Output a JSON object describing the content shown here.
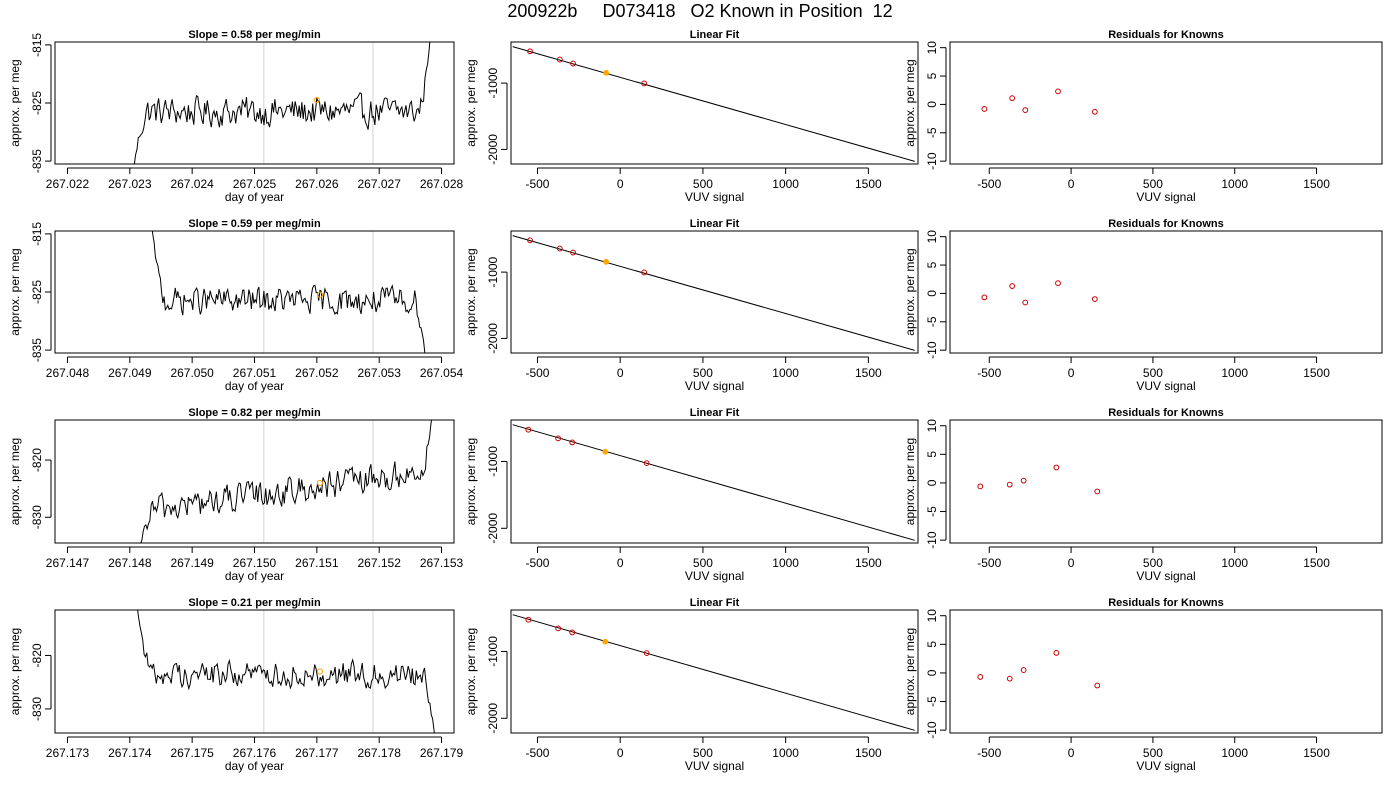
{
  "title": "200922b     D073418   O2 Known in Position  12",
  "colors": {
    "trace": "#000000",
    "gridline": "#d3d3d3",
    "highlight": "#ffa500",
    "residual": "#cc0000",
    "frame": "#000000"
  },
  "chart_data": [
    {
      "id": "r1-trace",
      "type": "line",
      "title": "Slope =  0.58  per meg/min",
      "xlabel": "day of year",
      "ylabel": "approx. per meg",
      "xlim": [
        267.0218,
        267.0282
      ],
      "ylim": [
        -835.5,
        -814.5
      ],
      "xticks": [
        267.022,
        267.023,
        267.024,
        267.025,
        267.026,
        267.027,
        267.028
      ],
      "xtick_labels": [
        "267.022",
        "267.023",
        "267.024",
        "267.025",
        "267.026",
        "267.027",
        "267.028"
      ],
      "yticks": [
        -835,
        -825,
        -815
      ],
      "ytick_labels": [
        "-835",
        "-825",
        "-815"
      ],
      "vlines": [
        267.02515,
        267.0269
      ],
      "trace_start": 267.02305,
      "trace_end": 267.02782,
      "level": -826.5,
      "noise": 1.8,
      "head_y": -837.0,
      "tail_y": -813.5,
      "marker": {
        "x": 267.026,
        "y": -824.5
      }
    },
    {
      "id": "r1-fit",
      "type": "line",
      "title": "Linear Fit",
      "xlabel": "VUV signal",
      "ylabel": "approx. per meg",
      "xlim": [
        -660,
        1800
      ],
      "ylim": [
        -2220,
        -380
      ],
      "xticks": [
        -500,
        0,
        500,
        1000,
        1500
      ],
      "xtick_labels": [
        "-500",
        "0",
        "500",
        "1000",
        "1500"
      ],
      "yticks": [
        -2000,
        -1000
      ],
      "ytick_labels": [
        "-2000",
        "-1000"
      ],
      "line": {
        "x": [
          -650,
          1780
        ],
        "y": [
          -450,
          -2180
        ]
      },
      "points": {
        "x": [
          -545,
          -365,
          -285,
          -85,
          145
        ],
        "y": [
          -520,
          -645,
          -705,
          -845,
          -1005
        ]
      },
      "highlight_index": 3
    },
    {
      "id": "r1-resid",
      "type": "scatter",
      "title": "Residuals for Knowns",
      "xlabel": "VUV signal",
      "ylabel": "approx. per meg",
      "xlim": [
        -740,
        1900
      ],
      "ylim": [
        -10.5,
        11
      ],
      "xticks": [
        -500,
        0,
        500,
        1000,
        1500
      ],
      "xtick_labels": [
        "-500",
        "0",
        "500",
        "1000",
        "1500"
      ],
      "yticks": [
        -10,
        -5,
        0,
        5,
        10
      ],
      "ytick_labels": [
        "-10",
        "-5",
        "0",
        "5",
        "10"
      ],
      "points": {
        "x": [
          -530,
          -360,
          -280,
          -80,
          145
        ],
        "y": [
          -0.8,
          1.1,
          -1.0,
          2.3,
          -1.3
        ]
      }
    },
    {
      "id": "r2-trace",
      "type": "line",
      "title": "Slope =  0.59  per meg/min",
      "xlabel": "day of year",
      "ylabel": "approx. per meg",
      "xlim": [
        267.0478,
        267.0542
      ],
      "ylim": [
        -835.5,
        -814.5
      ],
      "xticks": [
        267.048,
        267.049,
        267.05,
        267.051,
        267.052,
        267.053,
        267.054
      ],
      "xtick_labels": [
        "267.048",
        "267.049",
        "267.050",
        "267.051",
        "267.052",
        "267.053",
        "267.054"
      ],
      "yticks": [
        -835,
        -825,
        -815
      ],
      "ytick_labels": [
        "-835",
        "-825",
        "-815"
      ],
      "vlines": [
        267.05115,
        267.0529
      ],
      "trace_start": 267.04935,
      "trace_end": 267.05375,
      "level": -826.5,
      "noise": 1.6,
      "head_y": -813.5,
      "tail_y": -837.0,
      "marker": {
        "x": 267.05205,
        "y": -825.5
      }
    },
    {
      "id": "r2-fit",
      "type": "line",
      "title": "Linear Fit",
      "xlabel": "VUV signal",
      "ylabel": "approx. per meg",
      "xlim": [
        -660,
        1800
      ],
      "ylim": [
        -2220,
        -380
      ],
      "xticks": [
        -500,
        0,
        500,
        1000,
        1500
      ],
      "xtick_labels": [
        "-500",
        "0",
        "500",
        "1000",
        "1500"
      ],
      "yticks": [
        -2000,
        -1000
      ],
      "ytick_labels": [
        "-2000",
        "-1000"
      ],
      "line": {
        "x": [
          -650,
          1780
        ],
        "y": [
          -450,
          -2180
        ]
      },
      "points": {
        "x": [
          -545,
          -365,
          -285,
          -85,
          145
        ],
        "y": [
          -520,
          -645,
          -705,
          -845,
          -1005
        ]
      },
      "highlight_index": 3
    },
    {
      "id": "r2-resid",
      "type": "scatter",
      "title": "Residuals for Knowns",
      "xlabel": "VUV signal",
      "ylabel": "approx. per meg",
      "xlim": [
        -740,
        1900
      ],
      "ylim": [
        -10.5,
        11
      ],
      "xticks": [
        -500,
        0,
        500,
        1000,
        1500
      ],
      "xtick_labels": [
        "-500",
        "0",
        "500",
        "1000",
        "1500"
      ],
      "yticks": [
        -10,
        -5,
        0,
        5,
        10
      ],
      "ytick_labels": [
        "-10",
        "-5",
        "0",
        "5",
        "10"
      ],
      "points": {
        "x": [
          -530,
          -360,
          -280,
          -80,
          145
        ],
        "y": [
          -0.7,
          1.3,
          -1.6,
          1.8,
          -1.0
        ]
      }
    },
    {
      "id": "r3-trace",
      "type": "line",
      "title": "Slope =  0.82  per meg/min",
      "xlabel": "day of year",
      "ylabel": "approx. per meg",
      "xlim": [
        267.1468,
        267.1532
      ],
      "ylim": [
        -834.5,
        -813.0
      ],
      "xticks": [
        267.147,
        267.148,
        267.149,
        267.15,
        267.151,
        267.152,
        267.153
      ],
      "xtick_labels": [
        "267.147",
        "267.148",
        "267.149",
        "267.150",
        "267.151",
        "267.152",
        "267.153"
      ],
      "yticks": [
        -830,
        -820
      ],
      "ytick_labels": [
        "-830",
        "-820"
      ],
      "vlines": [
        267.15015,
        267.1519
      ],
      "trace_start": 267.14815,
      "trace_end": 267.15285,
      "level_start": -829.0,
      "level_end": -822.0,
      "noise": 1.8,
      "head_y": -836.0,
      "tail_y": -812.0,
      "marker": {
        "x": 267.15105,
        "y": -824.0
      }
    },
    {
      "id": "r3-fit",
      "type": "line",
      "title": "Linear Fit",
      "xlabel": "VUV signal",
      "ylabel": "approx. per meg",
      "xlim": [
        -660,
        1800
      ],
      "ylim": [
        -2220,
        -380
      ],
      "xticks": [
        -500,
        0,
        500,
        1000,
        1500
      ],
      "xtick_labels": [
        "-500",
        "0",
        "500",
        "1000",
        "1500"
      ],
      "yticks": [
        -2000,
        -1000
      ],
      "ytick_labels": [
        "-2000",
        "-1000"
      ],
      "line": {
        "x": [
          -650,
          1780
        ],
        "y": [
          -450,
          -2180
        ]
      },
      "points": {
        "x": [
          -555,
          -375,
          -290,
          -90,
          160
        ],
        "y": [
          -525,
          -655,
          -715,
          -855,
          -1025
        ]
      },
      "highlight_index": 3
    },
    {
      "id": "r3-resid",
      "type": "scatter",
      "title": "Residuals for Knowns",
      "xlabel": "VUV signal",
      "ylabel": "approx. per meg",
      "xlim": [
        -740,
        1900
      ],
      "ylim": [
        -10.5,
        11
      ],
      "xticks": [
        -500,
        0,
        500,
        1000,
        1500
      ],
      "xtick_labels": [
        "-500",
        "0",
        "500",
        "1000",
        "1500"
      ],
      "yticks": [
        -10,
        -5,
        0,
        5,
        10
      ],
      "ytick_labels": [
        "-10",
        "-5",
        "0",
        "5",
        "10"
      ],
      "points": {
        "x": [
          -555,
          -375,
          -290,
          -90,
          160
        ],
        "y": [
          -0.6,
          -0.3,
          0.4,
          2.7,
          -1.5
        ]
      }
    },
    {
      "id": "r4-trace",
      "type": "line",
      "title": "Slope =  0.21  per meg/min",
      "xlabel": "day of year",
      "ylabel": "approx. per meg",
      "xlim": [
        267.1728,
        267.1792
      ],
      "ylim": [
        -834.5,
        -811.5
      ],
      "xticks": [
        267.173,
        267.174,
        267.175,
        267.176,
        267.177,
        267.178,
        267.179
      ],
      "xtick_labels": [
        "267.173",
        "267.174",
        "267.175",
        "267.176",
        "267.177",
        "267.178",
        "267.179"
      ],
      "yticks": [
        -830,
        -820
      ],
      "ytick_labels": [
        "-830",
        "-820"
      ],
      "vlines": [
        267.17615,
        267.1779
      ],
      "trace_start": 267.17412,
      "trace_end": 267.1789,
      "level": -823.5,
      "noise": 1.7,
      "head_y": -811.0,
      "tail_y": -836.0,
      "marker": {
        "x": 267.17705,
        "y": -823.0
      }
    },
    {
      "id": "r4-fit",
      "type": "line",
      "title": "Linear Fit",
      "xlabel": "VUV signal",
      "ylabel": "approx. per meg",
      "xlim": [
        -660,
        1800
      ],
      "ylim": [
        -2220,
        -380
      ],
      "xticks": [
        -500,
        0,
        500,
        1000,
        1500
      ],
      "xtick_labels": [
        "-500",
        "0",
        "500",
        "1000",
        "1500"
      ],
      "yticks": [
        -2000,
        -1000
      ],
      "ytick_labels": [
        "-2000",
        "-1000"
      ],
      "line": {
        "x": [
          -650,
          1780
        ],
        "y": [
          -450,
          -2180
        ]
      },
      "points": {
        "x": [
          -555,
          -375,
          -290,
          -90,
          160
        ],
        "y": [
          -525,
          -655,
          -715,
          -855,
          -1025
        ]
      },
      "highlight_index": 3
    },
    {
      "id": "r4-resid",
      "type": "scatter",
      "title": "Residuals for Knowns",
      "xlabel": "VUV signal",
      "ylabel": "approx. per meg",
      "xlim": [
        -740,
        1900
      ],
      "ylim": [
        -10.5,
        11
      ],
      "xticks": [
        -500,
        0,
        500,
        1000,
        1500
      ],
      "xtick_labels": [
        "-500",
        "0",
        "500",
        "1000",
        "1500"
      ],
      "yticks": [
        -10,
        -5,
        0,
        5,
        10
      ],
      "ytick_labels": [
        "-10",
        "-5",
        "0",
        "5",
        "10"
      ],
      "points": {
        "x": [
          -555,
          -375,
          -290,
          -90,
          160
        ],
        "y": [
          -0.7,
          -1.0,
          0.5,
          3.5,
          -2.2
        ]
      }
    }
  ]
}
